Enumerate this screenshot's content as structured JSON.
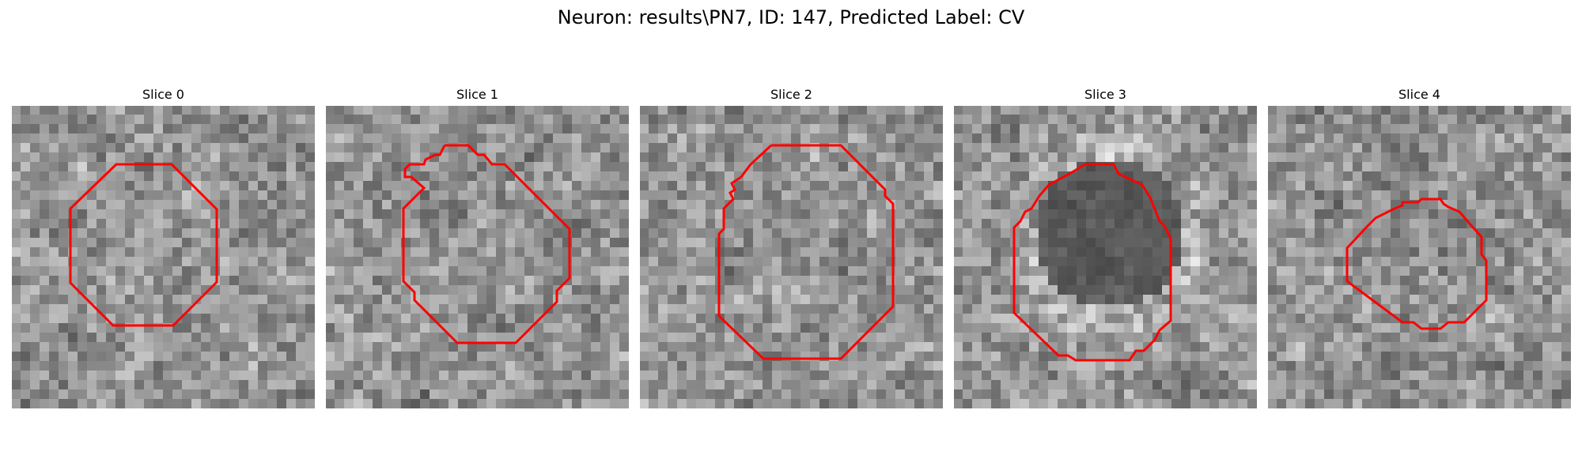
{
  "figure": {
    "title": "Neuron: results\\PN7, ID: 147, Predicted Label: CV"
  },
  "panels": [
    {
      "title": "Slice 0",
      "image": "grayscale-em-patch",
      "contour_color": "#ff0000"
    },
    {
      "title": "Slice 1",
      "image": "grayscale-em-patch",
      "contour_color": "#ff0000"
    },
    {
      "title": "Slice 2",
      "image": "grayscale-em-patch",
      "contour_color": "#ff0000"
    },
    {
      "title": "Slice 3",
      "image": "grayscale-em-patch",
      "contour_color": "#ff0000"
    },
    {
      "title": "Slice 4",
      "image": "grayscale-em-patch",
      "contour_color": "#ff0000"
    }
  ]
}
